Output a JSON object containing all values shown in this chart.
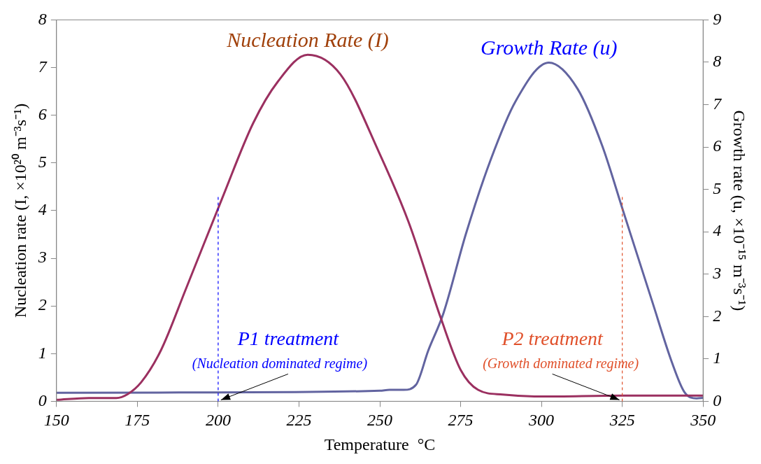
{
  "chart_data": {
    "type": "line",
    "xlabel": "Temperature  °C",
    "ylabel": "Nucleation rate (I, ×10²⁰ m⁻³s⁻¹)",
    "y2label": "Growth rate (u, ×10⁻¹⁵ m⁻³s⁻¹)",
    "xlim": [
      150,
      350
    ],
    "xticks": [
      150,
      175,
      200,
      225,
      250,
      275,
      300,
      325,
      350
    ],
    "ylim": [
      0,
      8
    ],
    "yticks": [
      0,
      1,
      2,
      3,
      4,
      5,
      6,
      7,
      8
    ],
    "y2lim": [
      0,
      9
    ],
    "y2ticks": [
      0,
      1,
      2,
      3,
      4,
      5,
      6,
      7,
      8,
      9
    ],
    "legend": false,
    "marker": "none",
    "line_style": "solid",
    "series": [
      {
        "name": "Nucleation Rate (I)",
        "color": "#9b3060",
        "x": [
          150,
          160,
          168.5,
          172,
          176.2,
          182.3,
          190.1,
          201.2,
          210.8,
          218.4,
          227.7,
          237.8,
          249.7,
          258.9,
          268.9,
          275,
          280.4,
          288,
          300,
          325,
          350
        ],
        "values": [
          0.03,
          0.07,
          0.07,
          0.15,
          0.4,
          1.07,
          2.37,
          4.25,
          5.83,
          6.7,
          7.27,
          6.86,
          5.23,
          3.76,
          1.74,
          0.66,
          0.24,
          0.14,
          0.1,
          0.12,
          0.12
        ]
      },
      {
        "name": "Growth Rate (u)",
        "color": "#6264a0",
        "axis": "y2",
        "x": [
          150,
          200,
          250,
          253,
          257.4,
          261.2,
          265,
          269.7,
          276.6,
          284.2,
          292,
          302.3,
          311.2,
          318.8,
          325.4,
          334.2,
          340.4,
          344.2,
          348,
          350
        ],
        "values": [
          0.2,
          0.21,
          0.25,
          0.27,
          0.27,
          0.39,
          1.2,
          2.08,
          3.94,
          5.68,
          7.08,
          7.99,
          7.37,
          6.03,
          4.46,
          2.37,
          0.91,
          0.22,
          0.07,
          0.08
        ]
      }
    ],
    "ref_lines": [
      {
        "axis": "x",
        "value": 200,
        "color": "#0000ff",
        "line_style": "dashed"
      },
      {
        "axis": "x",
        "value": 325,
        "color": "#e0502a",
        "line_style": "dashed"
      }
    ],
    "annotations": [
      {
        "text": "P1 treatment",
        "x": 200,
        "y": 0
      },
      "(Nucleation dominated regime)",
      {
        "text": "P2 treatment",
        "x": 325,
        "y": 0
      },
      "(Growth dominated regime)"
    ]
  }
}
